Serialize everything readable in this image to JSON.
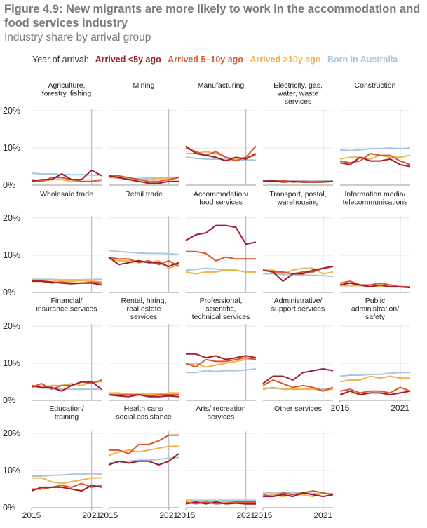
{
  "title": "Figure 4.9: New migrants are more likely to work in the accommodation and food services industry",
  "subtitle": "Industry share by arrival group",
  "legend": {
    "label": "Year of arrival:",
    "entries": [
      "Arrived <5y ago",
      "Arrived 5–10y ago",
      "Arrived >10y ago",
      "Born in Australia"
    ]
  },
  "colors": {
    "Arrived <5y ago": "#a01c2e",
    "Arrived 5–10y ago": "#d8582c",
    "Arrived >10y ago": "#f2b24a",
    "Born in Australia": "#a9c6dc",
    "grid": "#e6e6e6",
    "axis": "#999999",
    "marker2021": "#b0b0b0"
  },
  "y_ticks": [
    "0%",
    "10%",
    "20%"
  ],
  "x_ticks": [
    "2015",
    "2021"
  ],
  "chart_data": {
    "type": "line",
    "ylim": [
      0,
      20
    ],
    "x": [
      2015,
      2016,
      2017,
      2018,
      2019,
      2020,
      2021,
      2022
    ],
    "series_names": [
      "Arrived <5y ago",
      "Arrived 5–10y ago",
      "Arrived >10y ago",
      "Born in Australia"
    ],
    "panels": [
      {
        "title": "Agriculture,\nforestry, fishing",
        "series": [
          [
            1.0,
            1.5,
            1.5,
            3.0,
            1.5,
            1.5,
            4.0,
            2.5
          ],
          [
            1.5,
            1.0,
            2.0,
            2.0,
            1.5,
            1.0,
            1.0,
            1.5
          ],
          [
            1.0,
            1.0,
            1.5,
            1.5,
            1.0,
            1.0,
            1.0,
            1.0
          ],
          [
            3.2,
            3.0,
            3.0,
            2.9,
            2.8,
            2.8,
            2.7,
            2.7
          ]
        ]
      },
      {
        "title": "Mining",
        "series": [
          [
            2.5,
            2.0,
            1.5,
            1.0,
            0.5,
            0.5,
            1.0,
            1.0
          ],
          [
            2.5,
            2.5,
            2.0,
            1.5,
            1.0,
            1.0,
            1.5,
            2.0
          ],
          [
            2.0,
            2.0,
            1.5,
            1.5,
            1.5,
            1.8,
            1.8,
            2.0
          ],
          [
            2.0,
            1.9,
            1.8,
            1.8,
            1.9,
            2.0,
            2.1,
            2.1
          ]
        ]
      },
      {
        "title": "Manufacturing",
        "series": [
          [
            10.5,
            8.5,
            8.0,
            7.5,
            6.5,
            7.5,
            7.0,
            8.5
          ],
          [
            10.0,
            9.0,
            8.0,
            9.0,
            7.5,
            6.5,
            7.5,
            10.5
          ],
          [
            8.5,
            8.5,
            9.0,
            8.5,
            7.5,
            7.0,
            7.5,
            8.0
          ],
          [
            7.5,
            7.2,
            7.0,
            7.0,
            6.9,
            6.8,
            6.8,
            6.7
          ]
        ]
      },
      {
        "title": "Electricity, gas,\nwater, waste\nservices",
        "series": [
          [
            1.0,
            1.2,
            0.8,
            1.0,
            0.8,
            0.8,
            0.9,
            1.0
          ],
          [
            1.2,
            1.0,
            1.2,
            0.8,
            1.0,
            0.8,
            0.8,
            1.0
          ],
          [
            1.0,
            1.0,
            1.0,
            1.0,
            1.0,
            1.0,
            1.0,
            1.0
          ],
          [
            1.2,
            1.2,
            1.2,
            1.2,
            1.2,
            1.2,
            1.2,
            1.2
          ]
        ]
      },
      {
        "title": "Construction",
        "series": [
          [
            6.0,
            5.5,
            7.5,
            6.5,
            6.5,
            7.0,
            5.5,
            5.0
          ],
          [
            6.5,
            6.0,
            6.5,
            8.5,
            8.0,
            8.0,
            6.5,
            5.5
          ],
          [
            7.0,
            7.5,
            7.5,
            7.0,
            8.0,
            7.5,
            7.5,
            8.0
          ],
          [
            9.5,
            9.3,
            9.5,
            9.8,
            9.8,
            10.0,
            9.8,
            10.0
          ]
        ]
      },
      {
        "title": "Wholesale trade",
        "series": [
          [
            3.0,
            3.0,
            2.8,
            2.5,
            2.3,
            2.5,
            2.5,
            2.0
          ],
          [
            3.2,
            3.0,
            2.5,
            2.8,
            2.5,
            2.5,
            2.8,
            2.5
          ],
          [
            3.5,
            3.3,
            3.3,
            3.0,
            3.0,
            3.2,
            3.0,
            2.8
          ],
          [
            3.5,
            3.5,
            3.5,
            3.4,
            3.4,
            3.4,
            3.5,
            3.5
          ]
        ]
      },
      {
        "title": "Retail trade",
        "series": [
          [
            9.5,
            7.5,
            8.0,
            8.5,
            8.0,
            8.0,
            7.0,
            8.0
          ],
          [
            9.5,
            9.0,
            9.0,
            8.0,
            8.5,
            7.5,
            8.5,
            7.0
          ],
          [
            9.0,
            8.5,
            8.5,
            8.5,
            8.0,
            8.5,
            6.5,
            7.5
          ],
          [
            11.3,
            11.0,
            10.8,
            10.6,
            10.5,
            10.5,
            10.4,
            10.2
          ]
        ]
      },
      {
        "title": "Accommodation/\nfood services",
        "series": [
          [
            14.0,
            15.5,
            16.0,
            18.0,
            18.0,
            17.5,
            13.0,
            13.5
          ],
          [
            11.0,
            11.0,
            10.5,
            8.5,
            9.5,
            9.0,
            9.0,
            9.0
          ],
          [
            5.5,
            5.0,
            5.5,
            5.5,
            6.0,
            6.0,
            5.5,
            5.5
          ],
          [
            6.0,
            6.2,
            6.5,
            6.3,
            6.0,
            6.0,
            5.5,
            5.5
          ]
        ]
      },
      {
        "title": "Transport, postal,\nwarehousing",
        "series": [
          [
            6.0,
            5.5,
            3.0,
            5.0,
            5.0,
            6.0,
            6.5,
            7.0
          ],
          [
            6.0,
            5.5,
            5.5,
            5.0,
            5.5,
            5.5,
            6.5,
            7.0
          ],
          [
            6.0,
            6.0,
            5.0,
            6.0,
            6.5,
            6.5,
            5.0,
            5.5
          ],
          [
            5.0,
            5.0,
            4.8,
            4.8,
            4.7,
            4.6,
            4.5,
            4.3
          ]
        ]
      },
      {
        "title": "Information media/\ntelecommunications",
        "series": [
          [
            2.0,
            2.5,
            2.0,
            1.5,
            2.0,
            1.5,
            1.5,
            1.3
          ],
          [
            2.5,
            3.0,
            2.0,
            2.0,
            2.5,
            2.0,
            1.5,
            1.5
          ],
          [
            1.8,
            1.8,
            1.8,
            1.8,
            1.6,
            1.6,
            1.5,
            1.5
          ],
          [
            1.8,
            1.8,
            1.8,
            1.7,
            1.7,
            1.6,
            1.6,
            1.5
          ]
        ]
      },
      {
        "title": "Financial/\ninsurance services",
        "series": [
          [
            4.0,
            3.5,
            3.5,
            2.5,
            4.0,
            5.0,
            5.0,
            3.0
          ],
          [
            3.5,
            4.5,
            3.0,
            4.0,
            4.0,
            5.0,
            4.5,
            5.5
          ],
          [
            3.5,
            3.5,
            4.0,
            4.0,
            4.5,
            4.0,
            5.0,
            5.0
          ],
          [
            3.5,
            3.3,
            3.2,
            3.0,
            3.0,
            3.0,
            3.0,
            3.0
          ]
        ]
      },
      {
        "title": "Rental, hiring,\nreal estate\nservices",
        "series": [
          [
            1.5,
            1.2,
            1.0,
            1.5,
            1.0,
            1.0,
            1.2,
            1.0
          ],
          [
            1.5,
            1.5,
            1.5,
            1.5,
            1.2,
            1.5,
            1.5,
            1.5
          ],
          [
            2.0,
            2.0,
            1.5,
            1.5,
            1.5,
            1.5,
            2.0,
            2.0
          ],
          [
            1.8,
            1.8,
            1.7,
            1.7,
            1.7,
            1.7,
            1.7,
            1.7
          ]
        ]
      },
      {
        "title": "Professional,\nscientific,\ntechnical services",
        "series": [
          [
            12.5,
            12.5,
            11.5,
            12.0,
            11.0,
            11.5,
            12.0,
            11.5
          ],
          [
            10.0,
            9.0,
            11.0,
            10.5,
            10.5,
            11.0,
            11.5,
            11.0
          ],
          [
            9.5,
            10.0,
            9.0,
            9.5,
            10.0,
            10.5,
            11.0,
            11.0
          ],
          [
            7.5,
            7.5,
            8.0,
            7.8,
            8.0,
            8.0,
            8.2,
            8.5
          ]
        ]
      },
      {
        "title": "Administrative/\nsupport services",
        "series": [
          [
            4.5,
            6.5,
            6.5,
            5.5,
            7.5,
            8.0,
            8.5,
            8.0
          ],
          [
            4.0,
            5.5,
            4.5,
            3.5,
            4.0,
            3.5,
            2.5,
            3.5
          ],
          [
            3.0,
            3.5,
            3.0,
            3.0,
            3.0,
            3.0,
            2.8,
            3.0
          ],
          [
            3.3,
            3.2,
            3.2,
            3.1,
            3.1,
            3.1,
            3.1,
            3.0
          ]
        ]
      },
      {
        "title": "Public\nadministration/\nsafety",
        "series": [
          [
            1.5,
            2.5,
            1.5,
            2.0,
            2.0,
            1.5,
            2.0,
            2.5
          ],
          [
            2.5,
            3.0,
            2.0,
            2.5,
            2.5,
            2.0,
            3.5,
            2.5
          ],
          [
            5.0,
            5.5,
            5.5,
            6.5,
            6.0,
            6.5,
            6.0,
            6.0
          ],
          [
            6.5,
            6.8,
            6.8,
            7.0,
            7.0,
            7.3,
            7.5,
            7.5
          ]
        ]
      },
      {
        "title": "Education/\ntraining",
        "series": [
          [
            4.5,
            5.5,
            5.5,
            5.5,
            5.0,
            4.5,
            6.0,
            5.5
          ],
          [
            5.0,
            5.0,
            5.5,
            6.0,
            5.5,
            6.5,
            5.5,
            6.0
          ],
          [
            8.0,
            8.0,
            7.0,
            6.5,
            7.0,
            7.5,
            8.0,
            8.0
          ],
          [
            8.5,
            8.5,
            8.7,
            8.8,
            9.0,
            9.0,
            9.2,
            9.0
          ]
        ]
      },
      {
        "title": "Health care/\nsocial assistance",
        "series": [
          [
            11.5,
            12.5,
            12.0,
            12.5,
            12.5,
            11.5,
            12.5,
            14.5
          ],
          [
            15.5,
            15.5,
            14.5,
            17.0,
            17.0,
            18.0,
            19.5,
            19.5
          ],
          [
            14.0,
            15.0,
            15.5,
            15.0,
            15.5,
            16.0,
            16.5,
            16.5
          ],
          [
            12.0,
            12.3,
            12.5,
            12.8,
            12.8,
            13.0,
            13.3,
            13.5
          ]
        ]
      },
      {
        "title": "Arts/ recreation\nservices",
        "series": [
          [
            1.0,
            1.5,
            1.0,
            1.5,
            1.0,
            1.2,
            1.0,
            1.0
          ],
          [
            1.5,
            1.0,
            1.5,
            1.0,
            1.2,
            1.5,
            1.5,
            1.5
          ],
          [
            2.0,
            1.5,
            1.8,
            1.5,
            1.5,
            1.5,
            1.5,
            1.5
          ],
          [
            2.0,
            2.0,
            2.0,
            2.0,
            2.0,
            2.0,
            2.0,
            2.0
          ]
        ]
      },
      {
        "title": "Other services",
        "series": [
          [
            3.0,
            3.0,
            3.5,
            3.0,
            4.0,
            3.5,
            3.0,
            3.5
          ],
          [
            3.5,
            3.0,
            4.0,
            3.5,
            4.0,
            4.5,
            4.0,
            3.5
          ],
          [
            3.0,
            3.5,
            3.0,
            3.5,
            3.5,
            3.0,
            4.0,
            3.5
          ],
          [
            4.0,
            4.0,
            4.0,
            4.0,
            4.0,
            3.8,
            3.8,
            3.8
          ]
        ]
      }
    ]
  }
}
